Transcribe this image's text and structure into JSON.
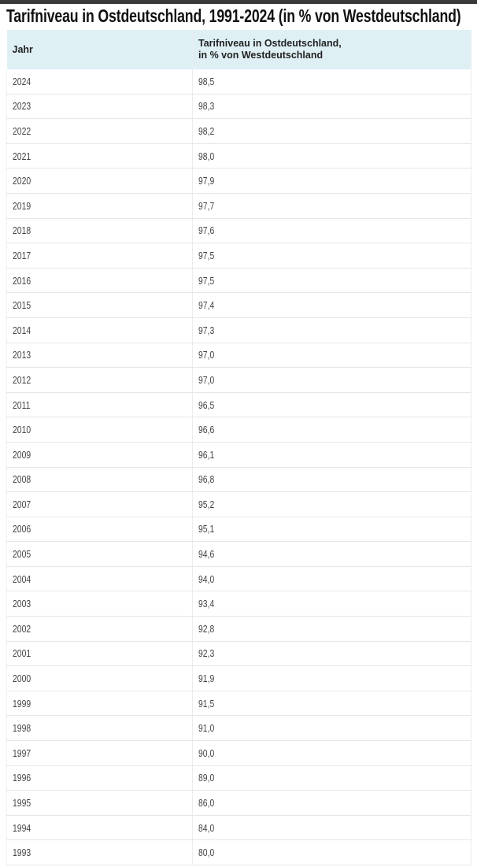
{
  "title": "Tarifniveau in Ostdeutschland, 1991-2024 (in % von Westdeutschland)",
  "table": {
    "headers": [
      "Jahr",
      "Tarifniveau in Ostdeutschland,",
      "in % von Westdeutschland"
    ],
    "rows": [
      [
        "2024",
        "98,5"
      ],
      [
        "2023",
        "98,3"
      ],
      [
        "2022",
        "98,2"
      ],
      [
        "2021",
        "98,0"
      ],
      [
        "2020",
        "97,9"
      ],
      [
        "2019",
        "97,7"
      ],
      [
        "2018",
        "97,6"
      ],
      [
        "2017",
        "97,5"
      ],
      [
        "2016",
        "97,5"
      ],
      [
        "2015",
        "97,4"
      ],
      [
        "2014",
        "97,3"
      ],
      [
        "2013",
        "97,0"
      ],
      [
        "2012",
        "97,0"
      ],
      [
        "2011",
        "96,5"
      ],
      [
        "2010",
        "96,6"
      ],
      [
        "2009",
        "96,1"
      ],
      [
        "2008",
        "96,8"
      ],
      [
        "2007",
        "95,2"
      ],
      [
        "2006",
        "95,1"
      ],
      [
        "2005",
        "94,6"
      ],
      [
        "2004",
        "94,0"
      ],
      [
        "2003",
        "93,4"
      ],
      [
        "2002",
        "92,8"
      ],
      [
        "2001",
        "92,3"
      ],
      [
        "2000",
        "91,9"
      ],
      [
        "1999",
        "91,5"
      ],
      [
        "1998",
        "91,0"
      ],
      [
        "1997",
        "90,0"
      ],
      [
        "1996",
        "89,0"
      ],
      [
        "1995",
        "86,0"
      ],
      [
        "1994",
        "84,0"
      ],
      [
        "1993",
        "80,0"
      ]
    ]
  },
  "colors": {
    "header_bg": "#dff0f5"
  }
}
